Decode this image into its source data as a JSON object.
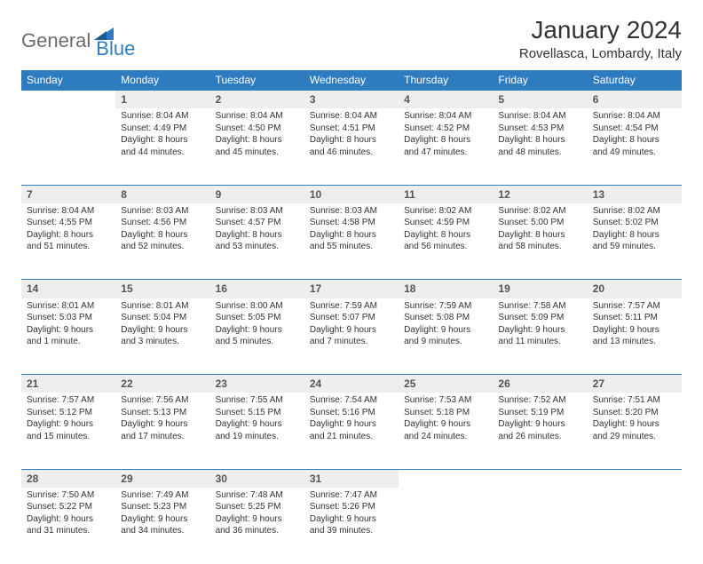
{
  "brand": {
    "part1": "General",
    "part2": "Blue"
  },
  "title": "January 2024",
  "location": "Rovellasca, Lombardy, Italy",
  "colors": {
    "header_bg": "#2f7bbf",
    "header_text": "#ffffff",
    "daynum_bg": "#eeeeee",
    "border": "#2f7bbf",
    "brand_gray": "#6b6b6b",
    "brand_blue": "#2f7bbf"
  },
  "weekdays": [
    "Sunday",
    "Monday",
    "Tuesday",
    "Wednesday",
    "Thursday",
    "Friday",
    "Saturday"
  ],
  "weeks": [
    [
      null,
      {
        "n": "1",
        "sr": "Sunrise: 8:04 AM",
        "ss": "Sunset: 4:49 PM",
        "d1": "Daylight: 8 hours",
        "d2": "and 44 minutes."
      },
      {
        "n": "2",
        "sr": "Sunrise: 8:04 AM",
        "ss": "Sunset: 4:50 PM",
        "d1": "Daylight: 8 hours",
        "d2": "and 45 minutes."
      },
      {
        "n": "3",
        "sr": "Sunrise: 8:04 AM",
        "ss": "Sunset: 4:51 PM",
        "d1": "Daylight: 8 hours",
        "d2": "and 46 minutes."
      },
      {
        "n": "4",
        "sr": "Sunrise: 8:04 AM",
        "ss": "Sunset: 4:52 PM",
        "d1": "Daylight: 8 hours",
        "d2": "and 47 minutes."
      },
      {
        "n": "5",
        "sr": "Sunrise: 8:04 AM",
        "ss": "Sunset: 4:53 PM",
        "d1": "Daylight: 8 hours",
        "d2": "and 48 minutes."
      },
      {
        "n": "6",
        "sr": "Sunrise: 8:04 AM",
        "ss": "Sunset: 4:54 PM",
        "d1": "Daylight: 8 hours",
        "d2": "and 49 minutes."
      }
    ],
    [
      {
        "n": "7",
        "sr": "Sunrise: 8:04 AM",
        "ss": "Sunset: 4:55 PM",
        "d1": "Daylight: 8 hours",
        "d2": "and 51 minutes."
      },
      {
        "n": "8",
        "sr": "Sunrise: 8:03 AM",
        "ss": "Sunset: 4:56 PM",
        "d1": "Daylight: 8 hours",
        "d2": "and 52 minutes."
      },
      {
        "n": "9",
        "sr": "Sunrise: 8:03 AM",
        "ss": "Sunset: 4:57 PM",
        "d1": "Daylight: 8 hours",
        "d2": "and 53 minutes."
      },
      {
        "n": "10",
        "sr": "Sunrise: 8:03 AM",
        "ss": "Sunset: 4:58 PM",
        "d1": "Daylight: 8 hours",
        "d2": "and 55 minutes."
      },
      {
        "n": "11",
        "sr": "Sunrise: 8:02 AM",
        "ss": "Sunset: 4:59 PM",
        "d1": "Daylight: 8 hours",
        "d2": "and 56 minutes."
      },
      {
        "n": "12",
        "sr": "Sunrise: 8:02 AM",
        "ss": "Sunset: 5:00 PM",
        "d1": "Daylight: 8 hours",
        "d2": "and 58 minutes."
      },
      {
        "n": "13",
        "sr": "Sunrise: 8:02 AM",
        "ss": "Sunset: 5:02 PM",
        "d1": "Daylight: 8 hours",
        "d2": "and 59 minutes."
      }
    ],
    [
      {
        "n": "14",
        "sr": "Sunrise: 8:01 AM",
        "ss": "Sunset: 5:03 PM",
        "d1": "Daylight: 9 hours",
        "d2": "and 1 minute."
      },
      {
        "n": "15",
        "sr": "Sunrise: 8:01 AM",
        "ss": "Sunset: 5:04 PM",
        "d1": "Daylight: 9 hours",
        "d2": "and 3 minutes."
      },
      {
        "n": "16",
        "sr": "Sunrise: 8:00 AM",
        "ss": "Sunset: 5:05 PM",
        "d1": "Daylight: 9 hours",
        "d2": "and 5 minutes."
      },
      {
        "n": "17",
        "sr": "Sunrise: 7:59 AM",
        "ss": "Sunset: 5:07 PM",
        "d1": "Daylight: 9 hours",
        "d2": "and 7 minutes."
      },
      {
        "n": "18",
        "sr": "Sunrise: 7:59 AM",
        "ss": "Sunset: 5:08 PM",
        "d1": "Daylight: 9 hours",
        "d2": "and 9 minutes."
      },
      {
        "n": "19",
        "sr": "Sunrise: 7:58 AM",
        "ss": "Sunset: 5:09 PM",
        "d1": "Daylight: 9 hours",
        "d2": "and 11 minutes."
      },
      {
        "n": "20",
        "sr": "Sunrise: 7:57 AM",
        "ss": "Sunset: 5:11 PM",
        "d1": "Daylight: 9 hours",
        "d2": "and 13 minutes."
      }
    ],
    [
      {
        "n": "21",
        "sr": "Sunrise: 7:57 AM",
        "ss": "Sunset: 5:12 PM",
        "d1": "Daylight: 9 hours",
        "d2": "and 15 minutes."
      },
      {
        "n": "22",
        "sr": "Sunrise: 7:56 AM",
        "ss": "Sunset: 5:13 PM",
        "d1": "Daylight: 9 hours",
        "d2": "and 17 minutes."
      },
      {
        "n": "23",
        "sr": "Sunrise: 7:55 AM",
        "ss": "Sunset: 5:15 PM",
        "d1": "Daylight: 9 hours",
        "d2": "and 19 minutes."
      },
      {
        "n": "24",
        "sr": "Sunrise: 7:54 AM",
        "ss": "Sunset: 5:16 PM",
        "d1": "Daylight: 9 hours",
        "d2": "and 21 minutes."
      },
      {
        "n": "25",
        "sr": "Sunrise: 7:53 AM",
        "ss": "Sunset: 5:18 PM",
        "d1": "Daylight: 9 hours",
        "d2": "and 24 minutes."
      },
      {
        "n": "26",
        "sr": "Sunrise: 7:52 AM",
        "ss": "Sunset: 5:19 PM",
        "d1": "Daylight: 9 hours",
        "d2": "and 26 minutes."
      },
      {
        "n": "27",
        "sr": "Sunrise: 7:51 AM",
        "ss": "Sunset: 5:20 PM",
        "d1": "Daylight: 9 hours",
        "d2": "and 29 minutes."
      }
    ],
    [
      {
        "n": "28",
        "sr": "Sunrise: 7:50 AM",
        "ss": "Sunset: 5:22 PM",
        "d1": "Daylight: 9 hours",
        "d2": "and 31 minutes."
      },
      {
        "n": "29",
        "sr": "Sunrise: 7:49 AM",
        "ss": "Sunset: 5:23 PM",
        "d1": "Daylight: 9 hours",
        "d2": "and 34 minutes."
      },
      {
        "n": "30",
        "sr": "Sunrise: 7:48 AM",
        "ss": "Sunset: 5:25 PM",
        "d1": "Daylight: 9 hours",
        "d2": "and 36 minutes."
      },
      {
        "n": "31",
        "sr": "Sunrise: 7:47 AM",
        "ss": "Sunset: 5:26 PM",
        "d1": "Daylight: 9 hours",
        "d2": "and 39 minutes."
      },
      null,
      null,
      null
    ]
  ]
}
